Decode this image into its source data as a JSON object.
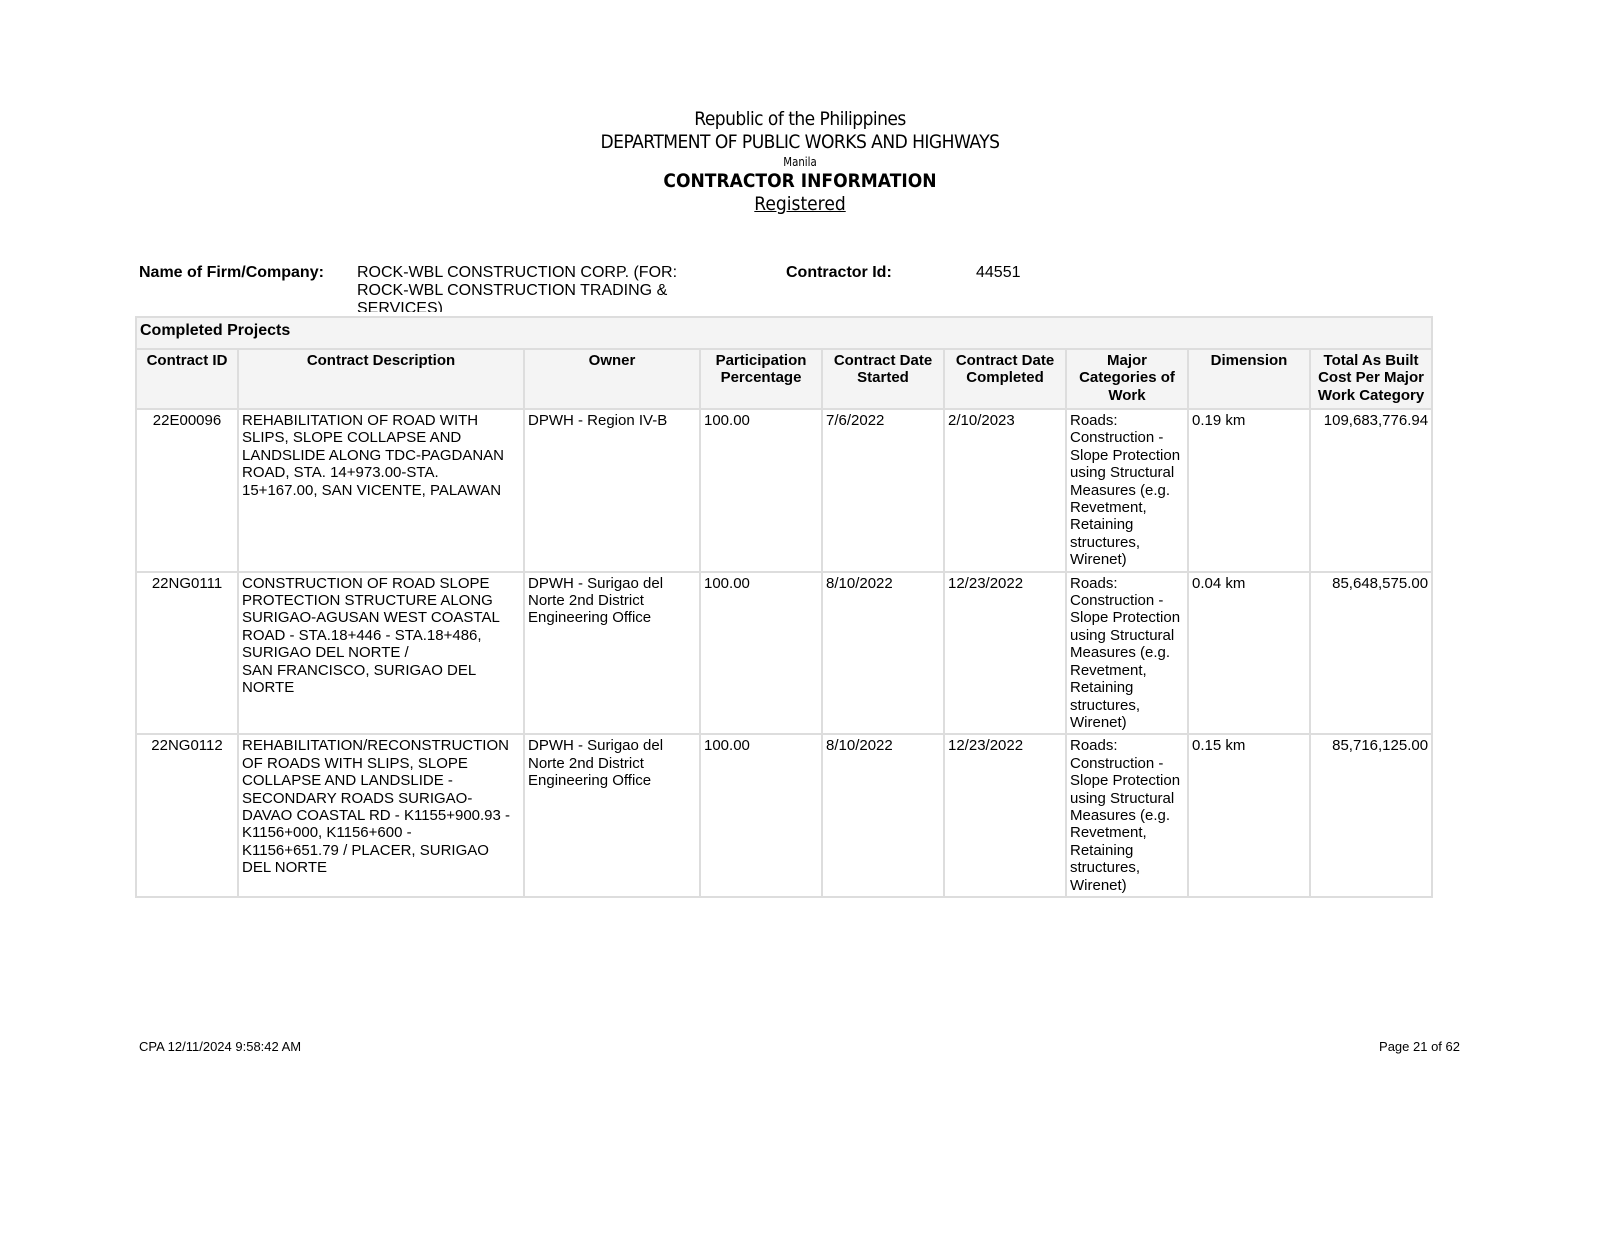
{
  "header": {
    "line1": "Republic of the Philippines",
    "line2": "DEPARTMENT OF PUBLIC WORKS AND HIGHWAYS",
    "line3": "Manila",
    "title": "CONTRACTOR INFORMATION",
    "status": "Registered"
  },
  "firm": {
    "name_label": "Name of Firm/Company:",
    "name": "ROCK-WBL CONSTRUCTION CORP. (FOR:\nROCK-WBL CONSTRUCTION TRADING &\nSERVICES)",
    "id_label": "Contractor Id:",
    "id": "44551"
  },
  "table": {
    "section": "Completed Projects",
    "columns": [
      "Contract ID",
      "Contract Description",
      "Owner",
      "Participation Percentage",
      "Contract Date Started",
      "Contract Date Completed",
      "Major Categories of Work",
      "Dimension",
      "Total As Built Cost Per Major Work Category"
    ],
    "rows": [
      {
        "id": "22E00096",
        "desc": "REHABILITATION OF ROAD WITH\nSLIPS, SLOPE COLLAPSE AND\nLANDSLIDE ALONG TDC-PAGDANAN\nROAD, STA. 14+973.00-STA.\n15+167.00, SAN VICENTE, PALAWAN",
        "owner": "DPWH - Region IV-B",
        "pct": "100.00",
        "start": "7/6/2022",
        "end": "2/10/2023",
        "cat": "Roads:\nConstruction -\nSlope Protection\nusing Structural\nMeasures (e.g.\nRevetment,\nRetaining\nstructures,\nWirenet)",
        "dim": "0.19 km",
        "cost": "109,683,776.94"
      },
      {
        "id": "22NG0111",
        "desc": "CONSTRUCTION OF ROAD SLOPE\nPROTECTION STRUCTURE ALONG\nSURIGAO-AGUSAN WEST COASTAL\nROAD - STA.18+446 - STA.18+486,\n                    SURIGAO DEL NORTE /\nSAN FRANCISCO, SURIGAO DEL\nNORTE",
        "owner": "DPWH - Surigao del\nNorte 2nd District\nEngineering Office",
        "pct": "100.00",
        "start": "8/10/2022",
        "end": "12/23/2022",
        "cat": "Roads:\nConstruction -\nSlope Protection\nusing Structural\nMeasures (e.g.\nRevetment,\nRetaining\nstructures,\nWirenet)",
        "dim": "0.04 km",
        "cost": "85,648,575.00"
      },
      {
        "id": "22NG0112",
        "desc": "REHABILITATION/RECONSTRUCTION\nOF ROADS WITH SLIPS, SLOPE\nCOLLAPSE AND LANDSLIDE -\nSECONDARY ROADS SURIGAO-\nDAVAO COASTAL RD - K1155+900.93 -\nK1156+000, K1156+600 -\nK1156+651.79 / PLACER, SURIGAO\nDEL NORTE",
        "owner": "DPWH - Surigao del\nNorte 2nd District\nEngineering Office",
        "pct": "100.00",
        "start": "8/10/2022",
        "end": "12/23/2022",
        "cat": "Roads:\nConstruction -\nSlope Protection\nusing Structural\nMeasures (e.g.\nRevetment,\nRetaining\nstructures,\nWirenet)",
        "dim": "0.15 km",
        "cost": "85,716,125.00"
      }
    ]
  },
  "footer": {
    "left": "CPA 12/11/2024 9:58:42 AM",
    "right": "Page 21 of 62"
  }
}
